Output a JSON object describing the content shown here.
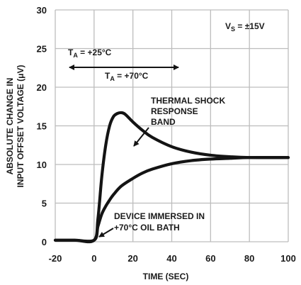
{
  "chart_data": {
    "type": "line",
    "xlabel": "TIME (SEC)",
    "ylabel_line1": "ABSOLUTE CHANGE IN",
    "ylabel_line2": "INPUT OFFSET VOLTAGE (μV)",
    "xlim": [
      -20,
      100
    ],
    "ylim": [
      0,
      30
    ],
    "x_ticks": [
      "-20",
      "0",
      "20",
      "40",
      "60",
      "80",
      "100"
    ],
    "y_ticks": [
      "0",
      "5",
      "10",
      "15",
      "20",
      "25",
      "30"
    ],
    "grid": true,
    "series": [
      {
        "x": [
          -20,
          -10,
          0,
          2,
          4,
          6,
          8,
          10,
          12,
          14,
          16,
          20,
          25,
          30,
          40,
          50,
          60,
          70,
          80,
          100
        ],
        "values": [
          0.2,
          0.2,
          0.2,
          3.0,
          8.5,
          12.5,
          15.0,
          16.2,
          16.6,
          16.7,
          16.5,
          15.5,
          14.4,
          13.5,
          12.3,
          11.6,
          11.2,
          11.0,
          10.9,
          10.9
        ]
      },
      {
        "x": [
          -20,
          -10,
          0,
          2,
          4,
          6,
          8,
          10,
          14,
          20,
          25,
          30,
          40,
          50,
          60,
          70,
          80,
          100
        ],
        "values": [
          0.2,
          0.2,
          0.2,
          2.0,
          3.6,
          4.6,
          5.4,
          6.1,
          7.2,
          8.2,
          8.9,
          9.4,
          10.1,
          10.5,
          10.7,
          10.8,
          10.9,
          10.9
        ]
      }
    ]
  },
  "annotations": {
    "vs_main": "V",
    "vs_sub": "S",
    "vs_value": " = ±15V",
    "ta1_main": "T",
    "ta1_sub": "A",
    "ta1_value": " = +25°C",
    "ta2_main": "T",
    "ta2_sub": "A",
    "ta2_value": " = +70°C",
    "band_line1": "THERMAL SHOCK",
    "band_line2": "RESPONSE",
    "band_line3": "BAND",
    "device_line1": "DEVICE IMMERSED IN",
    "device_line2": "+70°C OIL BATH"
  },
  "colors": {
    "grid": "#bdbdbd",
    "curve": "#141414",
    "fill": "#ffffff",
    "text": "#1a1a1a"
  }
}
